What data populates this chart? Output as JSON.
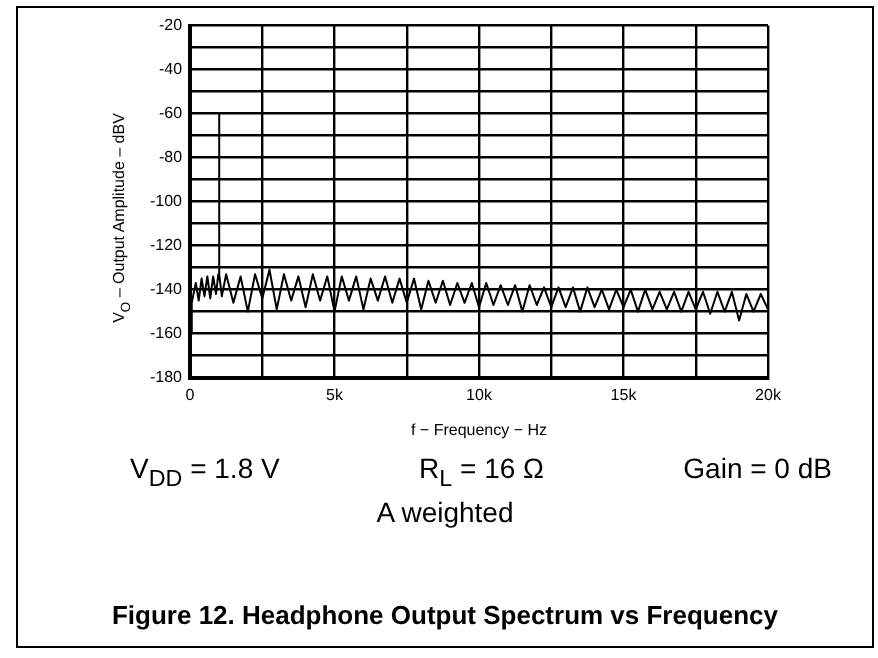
{
  "chart_data": {
    "type": "line",
    "title": "Figure 12. Headphone Output Spectrum vs Frequency",
    "xlabel": "f − Frequency − Hz",
    "ylabel": "V$_{O}$ – Output Amplitude – dBV",
    "annotations": [
      "V$_{DD}$ = 1.8 V",
      "R$_{L}$ = 16 Ω",
      "Gain = 0 dB",
      "A weighted"
    ],
    "xlim": [
      0,
      20000
    ],
    "ylim": [
      -180,
      -20
    ],
    "xticks": [
      0,
      {
        "value": 2500,
        "label": null
      },
      {
        "value": 5000,
        "label": "5k"
      },
      {
        "value": 7500,
        "label": null
      },
      {
        "value": 10000,
        "label": "10k"
      },
      {
        "value": 12500,
        "label": null
      },
      {
        "value": 15000,
        "label": "15k"
      },
      {
        "value": 17500,
        "label": null
      },
      {
        "value": 20000,
        "label": "20k"
      }
    ],
    "yticks": [
      -180,
      {
        "value": -170,
        "label": null
      },
      -160,
      {
        "value": -150,
        "label": null
      },
      -140,
      {
        "value": -130,
        "label": null
      },
      -120,
      {
        "value": -110,
        "label": null
      },
      -100,
      {
        "value": -90,
        "label": null
      },
      -80,
      {
        "value": -70,
        "label": null
      },
      -60,
      {
        "value": -50,
        "label": null
      },
      -40,
      {
        "value": -30,
        "label": null
      },
      -20
    ],
    "grid": true,
    "marker": "none",
    "line_style": "solid",
    "series": [
      {
        "color": "#000000",
        "x": [
          0,
          60,
          120,
          200,
          300,
          400,
          500,
          600,
          700,
          800,
          900,
          980,
          1000,
          1020,
          1100,
          1250,
          1500,
          1750,
          2000,
          2250,
          2500,
          2750,
          3000,
          3250,
          3500,
          3750,
          4000,
          4250,
          4500,
          4750,
          5000,
          5250,
          5500,
          5750,
          6000,
          6250,
          6500,
          6750,
          7000,
          7250,
          7500,
          7750,
          8000,
          8250,
          8500,
          8750,
          9000,
          9250,
          9500,
          9750,
          10000,
          10250,
          10500,
          10750,
          11000,
          11250,
          11500,
          11750,
          12000,
          12250,
          12500,
          12750,
          13000,
          13250,
          13500,
          13750,
          14000,
          14250,
          14500,
          14750,
          15000,
          15250,
          15500,
          15750,
          16000,
          16250,
          16500,
          16750,
          17000,
          17250,
          17500,
          17750,
          18000,
          18250,
          18500,
          18750,
          19000,
          19250,
          19500,
          19750,
          20000
        ],
        "values": [
          -160,
          -146,
          -142,
          -137,
          -145,
          -135,
          -143,
          -134,
          -144,
          -134,
          -142,
          -133,
          -60,
          -133,
          -143,
          -133,
          -146,
          -134,
          -150,
          -133,
          -144,
          -131,
          -149,
          -133,
          -145,
          -134,
          -148,
          -133,
          -145,
          -134,
          -150,
          -134,
          -145,
          -134,
          -149,
          -135,
          -145,
          -134,
          -146,
          -135,
          -146,
          -135,
          -149,
          -136,
          -146,
          -136,
          -147,
          -137,
          -146,
          -137,
          -148,
          -137,
          -147,
          -138,
          -147,
          -138,
          -150,
          -138,
          -147,
          -139,
          -148,
          -139,
          -148,
          -139,
          -150,
          -139,
          -148,
          -140,
          -149,
          -140,
          -148,
          -140,
          -150,
          -140,
          -149,
          -141,
          -149,
          -141,
          -150,
          -141,
          -149,
          -141,
          -151,
          -141,
          -150,
          -141,
          -154,
          -142,
          -150,
          -142,
          -149
        ]
      }
    ]
  }
}
